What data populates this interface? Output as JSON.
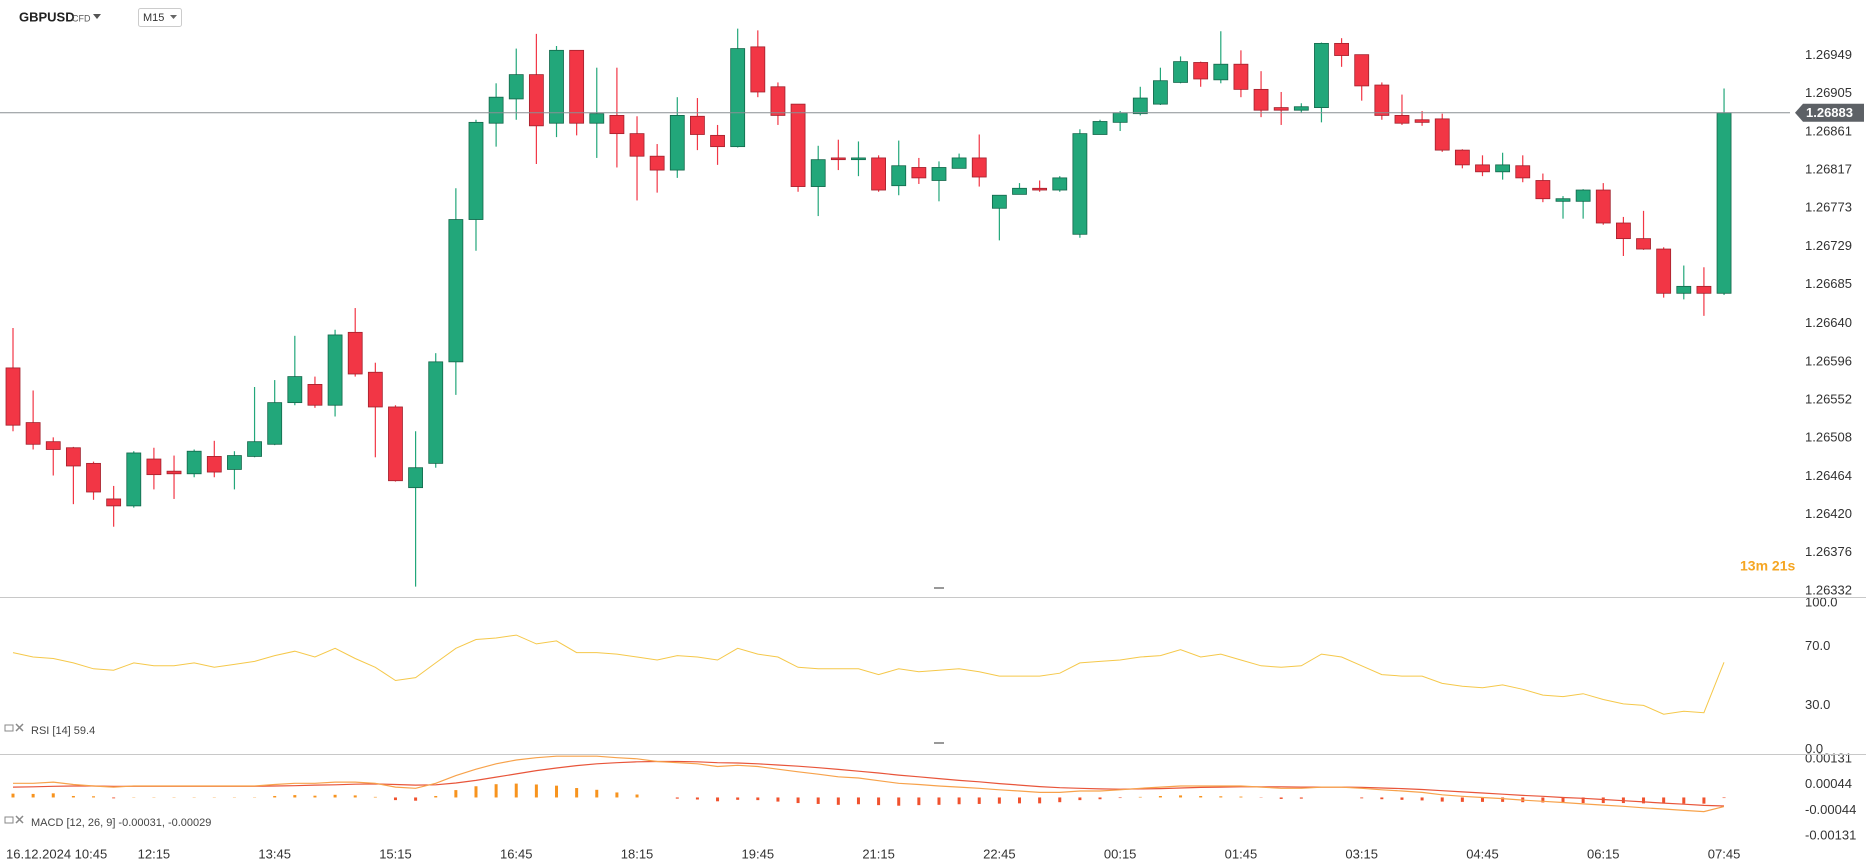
{
  "chart_data": {
    "type": "candlestick",
    "symbol": "GBPUSD",
    "instrument": "CFD",
    "timeframe": "M15",
    "countdown": "13m 21s",
    "current_price": 1.26883,
    "up_color": "#22a77a",
    "down_color": "#f23645",
    "grid": true,
    "categories": [
      null,
      "16.12.2024 10:45",
      null,
      null,
      null,
      null,
      null,
      "12:15",
      null,
      null,
      null,
      null,
      null,
      "13:45",
      null,
      null,
      null,
      null,
      null,
      "15:15",
      null,
      null,
      null,
      null,
      null,
      "16:45",
      null,
      null,
      null,
      null,
      null,
      "18:15",
      null,
      null,
      null,
      null,
      null,
      "19:45",
      null,
      null,
      null,
      null,
      null,
      "21:15",
      null,
      null,
      null,
      null,
      null,
      "22:45",
      null,
      null,
      null,
      null,
      null,
      "00:15",
      null,
      null,
      null,
      null,
      null,
      "01:45",
      null,
      null,
      null,
      null,
      null,
      "03:15",
      null,
      null,
      null,
      null,
      null,
      "04:45",
      null,
      null,
      null,
      null,
      null,
      "06:15",
      null,
      null,
      null,
      null,
      null,
      "07:45"
    ],
    "open": [
      1.26589,
      1.26526,
      1.26504,
      1.26497,
      1.26479,
      1.26438,
      1.2643,
      1.26484,
      1.2647,
      1.26467,
      1.26487,
      1.26472,
      1.26487,
      1.26501,
      1.26549,
      1.2657,
      1.26546,
      1.2663,
      1.26584,
      1.26544,
      1.26451,
      1.26479,
      1.26596,
      1.2676,
      1.26871,
      1.26899,
      1.26927,
      1.26871,
      1.26955,
      1.26871,
      1.2688,
      1.26859,
      1.26833,
      1.26817,
      1.26879,
      1.26857,
      1.26844,
      1.26959,
      1.26913,
      1.26893,
      1.26798,
      1.26831,
      1.26829,
      1.26831,
      1.26799,
      1.2682,
      1.26805,
      1.26819,
      1.26831,
      1.26773,
      1.26789,
      1.26796,
      1.26794,
      1.26743,
      1.26858,
      1.26872,
      1.26882,
      1.26893,
      1.26918,
      1.26941,
      1.26921,
      1.26939,
      1.2691,
      1.26889,
      1.26886,
      1.26889,
      1.26963,
      1.2695,
      1.26915,
      1.2688,
      1.26875,
      1.26876,
      1.2684,
      1.26823,
      1.26815,
      1.26822,
      1.26805,
      1.26781,
      1.26781,
      1.26794,
      1.26756,
      1.26738,
      1.26726,
      1.26675,
      1.26683,
      1.26675
    ],
    "high": [
      1.26635,
      1.26563,
      1.26509,
      1.26498,
      1.26481,
      1.26453,
      1.26493,
      1.26497,
      1.26488,
      1.26495,
      1.26505,
      1.26493,
      1.26567,
      1.26575,
      1.26626,
      1.26579,
      1.26633,
      1.26658,
      1.26595,
      1.26546,
      1.26516,
      1.26606,
      1.26796,
      1.26875,
      1.26917,
      1.26957,
      1.26974,
      1.2696,
      1.26955,
      1.26935,
      1.26935,
      1.26879,
      1.26847,
      1.26901,
      1.269,
      1.26869,
      1.2698,
      1.26978,
      1.26918,
      1.26893,
      1.26845,
      1.26852,
      1.2685,
      1.26834,
      1.26851,
      1.26831,
      1.26827,
      1.26836,
      1.26858,
      1.26788,
      1.26802,
      1.26805,
      1.2681,
      1.26864,
      1.26875,
      1.26885,
      1.26913,
      1.26935,
      1.26948,
      1.26942,
      1.26977,
      1.26955,
      1.26931,
      1.26907,
      1.26894,
      1.26964,
      1.26969,
      1.2695,
      1.26918,
      1.26904,
      1.26885,
      1.26882,
      1.26841,
      1.26834,
      1.26837,
      1.26834,
      1.26813,
      1.26787,
      1.26795,
      1.26802,
      1.26763,
      1.2677,
      1.26728,
      1.26707,
      1.26705,
      1.26911
    ],
    "low": [
      1.26516,
      1.26495,
      1.26465,
      1.26432,
      1.26437,
      1.26406,
      1.26428,
      1.26449,
      1.26438,
      1.26463,
      1.26463,
      1.26449,
      1.26486,
      1.265,
      1.26546,
      1.26543,
      1.26533,
      1.26579,
      1.26486,
      1.26458,
      1.26337,
      1.26474,
      1.26558,
      1.26724,
      1.26844,
      1.26875,
      1.26824,
      1.26855,
      1.26857,
      1.26831,
      1.2682,
      1.26782,
      1.26791,
      1.26808,
      1.2684,
      1.26823,
      1.26843,
      1.26901,
      1.26869,
      1.26792,
      1.26764,
      1.26817,
      1.2681,
      1.26792,
      1.26788,
      1.26801,
      1.26781,
      1.26819,
      1.26798,
      1.26736,
      1.26789,
      1.26792,
      1.26792,
      1.26739,
      1.26858,
      1.26862,
      1.2688,
      1.26892,
      1.26917,
      1.26913,
      1.26917,
      1.26901,
      1.26878,
      1.26869,
      1.26883,
      1.26872,
      1.26936,
      1.26897,
      1.26875,
      1.26869,
      1.26868,
      1.26838,
      1.26819,
      1.2681,
      1.26806,
      1.26803,
      1.2678,
      1.26761,
      1.26761,
      1.26754,
      1.26718,
      1.26725,
      1.2667,
      1.26668,
      1.26649,
      1.26673
    ],
    "close": [
      1.26523,
      1.26501,
      1.26495,
      1.26476,
      1.26446,
      1.2643,
      1.26491,
      1.26466,
      1.26467,
      1.26493,
      1.26469,
      1.26488,
      1.26504,
      1.26549,
      1.26579,
      1.26546,
      1.26627,
      1.26582,
      1.26544,
      1.26459,
      1.26474,
      1.26596,
      1.2676,
      1.26872,
      1.26901,
      1.26927,
      1.26868,
      1.26955,
      1.26871,
      1.26882,
      1.26859,
      1.26833,
      1.26817,
      1.2688,
      1.26858,
      1.26844,
      1.26957,
      1.26907,
      1.2688,
      1.26798,
      1.26829,
      1.26829,
      1.26831,
      1.26794,
      1.26822,
      1.26808,
      1.2682,
      1.26831,
      1.26809,
      1.26788,
      1.26796,
      1.26794,
      1.26808,
      1.26859,
      1.26873,
      1.26883,
      1.269,
      1.2692,
      1.26942,
      1.26922,
      1.26939,
      1.2691,
      1.26886,
      1.26886,
      1.2689,
      1.26963,
      1.26949,
      1.26914,
      1.2688,
      1.26871,
      1.26872,
      1.2684,
      1.26823,
      1.26815,
      1.26823,
      1.26808,
      1.26784,
      1.26784,
      1.26794,
      1.26756,
      1.26738,
      1.26726,
      1.26675,
      1.26683,
      1.26675,
      1.26883
    ],
    "ylim": [
      1.26325,
      1.27013
    ],
    "yticks": [
      1.26949,
      1.26905,
      1.26861,
      1.26817,
      1.26773,
      1.26729,
      1.26685,
      {
        "value": 1.2664,
        "label": "1.26640"
      },
      1.26596,
      1.26552,
      1.26508,
      1.26464,
      {
        "value": 1.2642,
        "label": "1.26420"
      },
      1.26376,
      1.26332
    ],
    "rsi": {
      "label": "RSI [14] 59.4",
      "color": "#f5c84a",
      "values": [
        66,
        63,
        62,
        59,
        55,
        54,
        59,
        57,
        57,
        59,
        56,
        58,
        60,
        64,
        67,
        63,
        69,
        62,
        56,
        47,
        49,
        59,
        69,
        75,
        76,
        78,
        72,
        74,
        66,
        66,
        65,
        63,
        61,
        64,
        63,
        61,
        69,
        65,
        63,
        56,
        55,
        55,
        55,
        51,
        55,
        53,
        54,
        55,
        53,
        50,
        50,
        50,
        52,
        59,
        60,
        61,
        63,
        64,
        68,
        63,
        65,
        61,
        57,
        56,
        57,
        65,
        63,
        57,
        51,
        50,
        50,
        45,
        43,
        42,
        44,
        41,
        37,
        36,
        38,
        34,
        31,
        30,
        24,
        26,
        25,
        59.4
      ],
      "ylim": [
        -2.5,
        103.3
      ],
      "yticks": [
        {
          "value": 100,
          "label": "100.0"
        },
        {
          "value": 70,
          "label": "70.0"
        },
        {
          "value": 30,
          "label": "30.0"
        },
        {
          "value": 0,
          "label": "0.0"
        }
      ]
    },
    "macd": {
      "label": "MACD [12, 26, 9] -0.00031, -0.00029",
      "macd": {
        "color": "#f7a24b",
        "values": [
          0.00048,
          0.00048,
          0.00052,
          0.00044,
          0.00039,
          0.00035,
          0.00039,
          0.00039,
          0.00039,
          0.00039,
          0.00039,
          0.00039,
          0.00039,
          0.00044,
          0.00048,
          0.00048,
          0.00052,
          0.00052,
          0.00048,
          0.00035,
          0.00031,
          0.00048,
          0.00074,
          0.00096,
          0.00114,
          0.00127,
          0.00135,
          0.0014,
          0.0014,
          0.0014,
          0.00135,
          0.00131,
          0.00122,
          0.00118,
          0.00114,
          0.00105,
          0.00109,
          0.00105,
          0.00096,
          0.00087,
          0.00079,
          0.0007,
          0.00066,
          0.00057,
          0.00048,
          0.00044,
          0.00039,
          0.00035,
          0.00031,
          0.00026,
          0.00022,
          0.00017,
          0.00017,
          0.00022,
          0.00022,
          0.00026,
          0.00031,
          0.00035,
          0.00039,
          0.00039,
          0.00039,
          0.00039,
          0.00035,
          0.00031,
          0.00031,
          0.00035,
          0.00035,
          0.00031,
          0.00026,
          0.00022,
          0.00017,
          9e-05,
          4e-05,
          0,
          -4e-05,
          -9e-05,
          -0.00013,
          -0.00017,
          -0.00022,
          -0.00026,
          -0.0003,
          -0.00035,
          -0.00039,
          -0.00044,
          -0.00048,
          -0.00031
        ]
      },
      "signal": {
        "color": "#e8553a",
        "values": [
          0.00035,
          0.00036,
          0.00038,
          0.00039,
          0.00039,
          0.00038,
          0.00038,
          0.00038,
          0.00038,
          0.00038,
          0.00038,
          0.00038,
          0.00038,
          0.00039,
          0.0004,
          0.00042,
          0.00043,
          0.00045,
          0.00046,
          0.00044,
          0.00042,
          0.00043,
          0.00049,
          0.00058,
          0.00069,
          0.0008,
          0.00091,
          0.001,
          0.00108,
          0.00114,
          0.00118,
          0.00121,
          0.00122,
          0.00122,
          0.00121,
          0.00118,
          0.00117,
          0.00114,
          0.0011,
          0.00106,
          0.00101,
          0.00095,
          0.00089,
          0.00083,
          0.00076,
          0.0007,
          0.00064,
          0.00058,
          0.00053,
          0.00047,
          0.00042,
          0.00037,
          0.00033,
          0.00031,
          0.00029,
          0.00028,
          0.00029,
          0.0003,
          0.00032,
          0.00034,
          0.00035,
          0.00036,
          0.00036,
          0.00036,
          0.00035,
          0.00035,
          0.00035,
          0.00034,
          0.00032,
          0.0003,
          0.00027,
          0.00023,
          0.00019,
          0.00015,
          0.00011,
          7e-05,
          4e-05,
          0,
          -3e-05,
          -7e-05,
          -0.00011,
          -0.00015,
          -0.00019,
          -0.00023,
          -0.00027,
          -0.00029
        ]
      },
      "histogram": {
        "up_color": "#f7931e",
        "down_color": "#f0522e",
        "values": [
          0.00013,
          0.00012,
          0.00014,
          5e-05,
          4e-05,
          -3e-05,
          1e-05,
          1e-05,
          1e-05,
          1e-05,
          1e-05,
          1e-05,
          1e-05,
          5e-05,
          8e-05,
          6e-05,
          9e-05,
          7e-05,
          2e-05,
          -9e-05,
          -0.00011,
          5e-05,
          0.00025,
          0.00038,
          0.00045,
          0.00047,
          0.00044,
          0.0004,
          0.00032,
          0.00026,
          0.00017,
          0.0001,
          0,
          -4e-05,
          -7e-05,
          -0.00013,
          -8e-05,
          -9e-05,
          -0.00014,
          -0.00019,
          -0.00022,
          -0.00025,
          -0.00023,
          -0.00026,
          -0.00028,
          -0.00026,
          -0.00025,
          -0.00023,
          -0.00022,
          -0.00021,
          -0.0002,
          -0.0002,
          -0.00016,
          -9e-05,
          -6e-05,
          -2e-05,
          2e-05,
          5e-05,
          7e-05,
          5e-05,
          4e-05,
          3e-05,
          -1e-05,
          -5e-05,
          -4e-05,
          0,
          0,
          -3e-05,
          -6e-05,
          -8e-05,
          -0.0001,
          -0.00014,
          -0.00015,
          -0.00015,
          -0.00015,
          -0.00016,
          -0.00017,
          -0.00017,
          -0.00019,
          -0.00019,
          -0.00019,
          -0.0002,
          -0.0002,
          -0.00021,
          -0.00021,
          -2e-05
        ]
      },
      "ylim": [
        -0.00168,
        0.00144
      ],
      "yticks": [
        0.00131,
        0.00044,
        -0.00044,
        -0.00131
      ]
    }
  }
}
